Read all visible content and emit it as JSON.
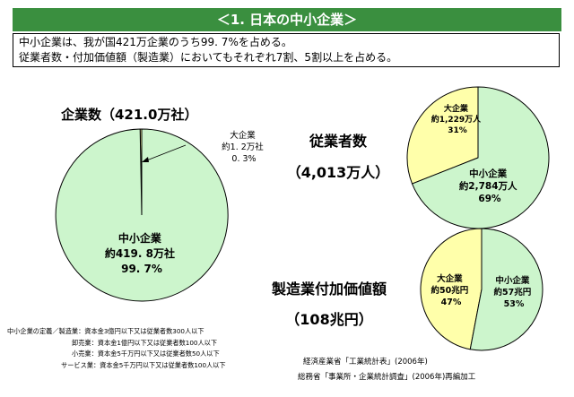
{
  "page": {
    "title": "＜1. 日本の中小企業＞",
    "summary_line1": "中小企業は、我が国421万企業のうち99. 7%を占める。",
    "summary_line2": "従業者数・付加価値額（製造業）においてもそれぞれ7割、5割以上を占める。"
  },
  "chart_data": [
    {
      "type": "pie",
      "title": "企業数（421.0万社）",
      "slices": [
        {
          "label_lines": [
            "大企業",
            "約1. 2万社",
            "0. 3%"
          ],
          "value": 0.3,
          "color": "#ffffaa"
        },
        {
          "label_lines": [
            "中小企業",
            "約419. 8万社",
            "99. 7%"
          ],
          "value": 99.7,
          "color": "#ccf5cc"
        }
      ]
    },
    {
      "type": "pie",
      "title_lines": [
        "従業者数",
        "（4,013万人）"
      ],
      "slices": [
        {
          "label_lines": [
            "大企業",
            "約1,229万人",
            "31%"
          ],
          "value": 31,
          "color": "#ffffaa"
        },
        {
          "label_lines": [
            "中小企業",
            "約2,784万人",
            "69%"
          ],
          "value": 69,
          "color": "#ccf5cc"
        }
      ]
    },
    {
      "type": "pie",
      "title_lines": [
        "製造業付加価値額",
        "（108兆円）"
      ],
      "slices": [
        {
          "label_lines": [
            "大企業",
            "約50兆円",
            "47%"
          ],
          "value": 47,
          "color": "#ffffaa"
        },
        {
          "label_lines": [
            "中小企業",
            "約57兆円",
            "53%"
          ],
          "value": 53,
          "color": "#ccf5cc"
        }
      ]
    }
  ],
  "notes": {
    "line1": "中小企業の定義／製造業：資本金3億円以下又は従業者数300人以下",
    "line2": "卸売業：資本金1億円以下又は従業者数100人以下",
    "line3": "小売業：資本金5千万円以下又は従業者数50人以下",
    "line4": "サービス業：資本金5千万円以下又は従業者数100人以下"
  },
  "sources": {
    "line1": "経済産業省「工業統計表」(2006年)",
    "line2": "総務省「事業所・企業統計調査」(2006年)再編加工"
  }
}
